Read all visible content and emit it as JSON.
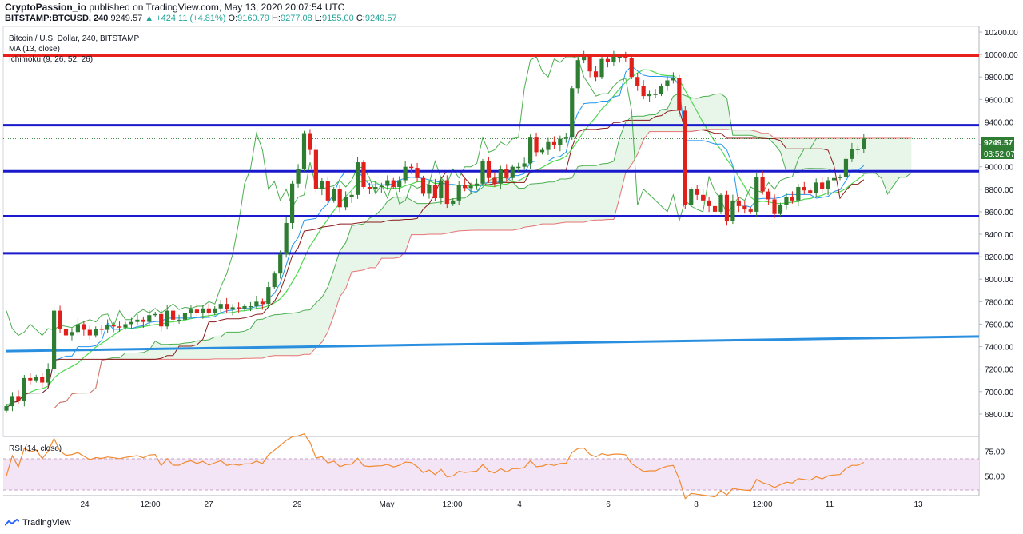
{
  "header": {
    "publisher": "CryptoPassion_io",
    "published_text": "published on TradingView.com, May 13, 2020 20:07:54 UTC",
    "symbol": "BITSTAMP:BTCUSD, 240",
    "last": "9249.57",
    "change": "▲ +424.11 (+4.81%)",
    "o_label": "O:",
    "o": "9160.79",
    "h_label": "H:",
    "h": "9277.08",
    "l_label": "L:",
    "l": "9155.00",
    "c_label": "C:",
    "c": "9249.57"
  },
  "legend": {
    "title": "Bitcoin / U.S. Dollar, 240, BITSTAMP",
    "ma": "MA (13, close)",
    "ichimoku": "Ichimoku (9, 26, 52, 26)",
    "rsi": "RSI (14, close)"
  },
  "badges": {
    "price": "9249.57",
    "countdown": "03:52:07"
  },
  "footer": {
    "brand": "TradingView"
  },
  "colors": {
    "up": "#2e7d32",
    "down": "#e0201b",
    "hline_red": "#e8201c",
    "hline_blue": "#1a1acc",
    "trend": "#2b8fe0",
    "cloud": "#e8f5e9",
    "rsi_band": "#f3e5f5",
    "rsi_line": "#f28a30",
    "ma": "#4cd94c",
    "tenkan": "#2196f3",
    "kijun": "#8b1a1a",
    "lagging": "#4caf50",
    "span_b": "#e57373"
  },
  "chart_data": {
    "type": "candlestick",
    "ylim": [
      6600,
      10250
    ],
    "y_ticks": [
      6800,
      7000,
      7200,
      7400,
      7600,
      7800,
      8000,
      8200,
      8400,
      8600,
      8800,
      9000,
      9200,
      9400,
      9600,
      9800,
      10000,
      10200
    ],
    "x_ticks": [
      "24",
      "12:00",
      "27",
      "29",
      "May",
      "12:00",
      "4",
      "6",
      "8",
      "12:00",
      "11",
      "13"
    ],
    "horizontal_levels": [
      {
        "price": 9990,
        "color": "red"
      },
      {
        "price": 9370,
        "color": "blue"
      },
      {
        "price": 8960,
        "color": "blue"
      },
      {
        "price": 8560,
        "color": "blue"
      },
      {
        "price": 8230,
        "color": "blue"
      }
    ],
    "trendline": [
      [
        0,
        7360
      ],
      [
        163,
        7490
      ]
    ],
    "close": [
      6870,
      6960,
      6920,
      7120,
      7100,
      7130,
      7080,
      7200,
      7720,
      7560,
      7500,
      7530,
      7600,
      7550,
      7500,
      7560,
      7550,
      7590,
      7580,
      7570,
      7600,
      7620,
      7640,
      7620,
      7680,
      7690,
      7580,
      7720,
      7640,
      7640,
      7700,
      7730,
      7700,
      7740,
      7700,
      7740,
      7780,
      7730,
      7750,
      7740,
      7760,
      7760,
      7800,
      7780,
      7930,
      8050,
      8220,
      8500,
      8850,
      8980,
      9300,
      9150,
      8800,
      8870,
      8700,
      8800,
      8640,
      8730,
      8750,
      9040,
      8820,
      8800,
      8820,
      8830,
      8880,
      8820,
      8880,
      9000,
      8990,
      8900,
      8760,
      8840,
      8720,
      8880,
      8670,
      8700,
      8840,
      8810,
      8830,
      8850,
      9050,
      8900,
      8850,
      8980,
      8900,
      9000,
      9000,
      9030,
      9260,
      9130,
      9150,
      9220,
      9190,
      9250,
      9260,
      9700,
      9950,
      9980,
      9850,
      9800,
      9960,
      9930,
      9980,
      9980,
      9970,
      9800,
      9720,
      9630,
      9650,
      9650,
      9720,
      9770,
      9790,
      9500,
      8660,
      8800,
      8750,
      8700,
      8650,
      8600,
      8750,
      8520,
      8700,
      8650,
      8620,
      8600,
      8910,
      8780,
      8710,
      8580,
      8660,
      8730,
      8700,
      8820,
      8790,
      8770,
      8860,
      8800,
      8880,
      8900,
      8910,
      9070,
      9160,
      9160,
      9250
    ],
    "rsi": {
      "ylim": [
        30,
        90
      ],
      "ticks": [
        50,
        75
      ],
      "band": [
        30,
        70
      ]
    }
  }
}
